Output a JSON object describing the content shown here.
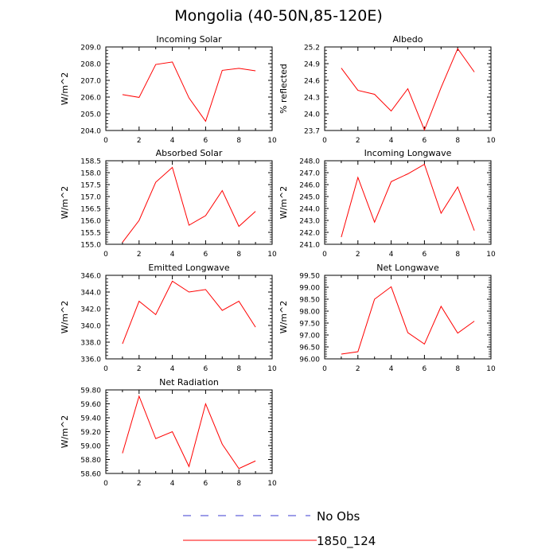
{
  "title": "Mongolia (40-50N,85-120E)",
  "colors": {
    "series": "#ff0000",
    "obs": "#3b3bd1",
    "axis": "#000000"
  },
  "legend": {
    "obs_label": "No Obs",
    "model_label": "1850_124"
  },
  "chart_data": [
    {
      "type": "line",
      "title": "Incoming Solar",
      "xlabel": "",
      "ylabel": "W/m^2",
      "xlim": [
        0,
        10
      ],
      "ylim": [
        204.0,
        209.0
      ],
      "xticks": [
        0,
        2,
        4,
        6,
        8,
        10
      ],
      "yticks": [
        204.0,
        205.0,
        206.0,
        207.0,
        208.0,
        209.0
      ],
      "ytick_labels": [
        "204.0",
        "205.0",
        "206.0",
        "207.0",
        "208.0",
        "209.0"
      ],
      "series": [
        {
          "name": "1850_124",
          "x": [
            1,
            2,
            3,
            4,
            5,
            6,
            7,
            8,
            9
          ],
          "values": [
            206.15,
            205.98,
            207.95,
            208.1,
            205.95,
            204.55,
            207.6,
            207.72,
            207.57
          ]
        }
      ]
    },
    {
      "type": "line",
      "title": "Albedo",
      "xlabel": "",
      "ylabel": "% reflected",
      "xlim": [
        0,
        10
      ],
      "ylim": [
        23.7,
        25.2
      ],
      "xticks": [
        0,
        2,
        4,
        6,
        8,
        10
      ],
      "yticks": [
        23.7,
        24.0,
        24.3,
        24.6,
        24.9,
        25.2
      ],
      "ytick_labels": [
        "23.7",
        "24.0",
        "24.3",
        "24.6",
        "24.9",
        "25.2"
      ],
      "series": [
        {
          "name": "1850_124",
          "x": [
            1,
            2,
            3,
            4,
            5,
            6,
            7,
            8,
            9
          ],
          "values": [
            24.82,
            24.42,
            24.35,
            24.05,
            24.45,
            23.71,
            24.47,
            25.17,
            24.75
          ]
        }
      ]
    },
    {
      "type": "line",
      "title": "Absorbed Solar",
      "xlabel": "",
      "ylabel": "W/m^2",
      "xlim": [
        0,
        10
      ],
      "ylim": [
        155.0,
        158.5
      ],
      "xticks": [
        0,
        2,
        4,
        6,
        8,
        10
      ],
      "yticks": [
        155.0,
        155.5,
        156.0,
        156.5,
        157.0,
        157.5,
        158.0,
        158.5
      ],
      "ytick_labels": [
        "155.0",
        "155.5",
        "156.0",
        "156.5",
        "157.0",
        "157.5",
        "158.0",
        "158.5"
      ],
      "series": [
        {
          "name": "1850_124",
          "x": [
            1,
            2,
            3,
            4,
            5,
            6,
            7,
            8,
            9
          ],
          "values": [
            155.08,
            156.0,
            157.6,
            158.22,
            155.8,
            156.2,
            157.25,
            155.75,
            156.38
          ]
        }
      ]
    },
    {
      "type": "line",
      "title": "Incoming Longwave",
      "xlabel": "",
      "ylabel": "W/m^2",
      "xlim": [
        0,
        10
      ],
      "ylim": [
        241.0,
        248.0
      ],
      "xticks": [
        0,
        2,
        4,
        6,
        8,
        10
      ],
      "yticks": [
        241.0,
        242.0,
        243.0,
        244.0,
        245.0,
        246.0,
        247.0,
        248.0
      ],
      "ytick_labels": [
        "241.0",
        "242.0",
        "243.0",
        "244.0",
        "245.0",
        "246.0",
        "247.0",
        "248.0"
      ],
      "series": [
        {
          "name": "1850_124",
          "x": [
            1,
            2,
            3,
            4,
            5,
            6,
            7,
            8,
            9
          ],
          "values": [
            241.6,
            246.6,
            242.85,
            246.25,
            246.9,
            247.7,
            243.6,
            245.8,
            242.15
          ]
        }
      ]
    },
    {
      "type": "line",
      "title": "Emitted Longwave",
      "xlabel": "",
      "ylabel": "W/m^2",
      "xlim": [
        0,
        10
      ],
      "ylim": [
        336.0,
        346.0
      ],
      "xticks": [
        0,
        2,
        4,
        6,
        8,
        10
      ],
      "yticks": [
        336.0,
        338.0,
        340.0,
        342.0,
        344.0,
        346.0
      ],
      "ytick_labels": [
        "336.0",
        "338.0",
        "340.0",
        "342.0",
        "344.0",
        "346.0"
      ],
      "series": [
        {
          "name": "1850_124",
          "x": [
            1,
            2,
            3,
            4,
            5,
            6,
            7,
            8,
            9
          ],
          "values": [
            337.8,
            342.9,
            341.3,
            345.3,
            344.0,
            344.3,
            341.8,
            342.9,
            339.8
          ]
        }
      ]
    },
    {
      "type": "line",
      "title": "Net Longwave",
      "xlabel": "",
      "ylabel": "W/m^2",
      "xlim": [
        0,
        10
      ],
      "ylim": [
        96.0,
        99.5
      ],
      "xticks": [
        0,
        2,
        4,
        6,
        8,
        10
      ],
      "yticks": [
        96.0,
        96.5,
        97.0,
        97.5,
        98.0,
        98.5,
        99.0,
        99.5
      ],
      "ytick_labels": [
        "96.00",
        "96.50",
        "97.00",
        "97.50",
        "98.00",
        "98.50",
        "99.00",
        "99.50"
      ],
      "series": [
        {
          "name": "1850_124",
          "x": [
            1,
            2,
            3,
            4,
            5,
            6,
            7,
            8,
            9
          ],
          "values": [
            96.2,
            96.3,
            98.5,
            99.02,
            97.1,
            96.62,
            98.2,
            97.08,
            97.58
          ]
        }
      ]
    },
    {
      "type": "line",
      "title": "Net Radiation",
      "xlabel": "",
      "ylabel": "W/m^2",
      "xlim": [
        0,
        10
      ],
      "ylim": [
        58.6,
        59.8
      ],
      "xticks": [
        0,
        2,
        4,
        6,
        8,
        10
      ],
      "yticks": [
        58.6,
        58.8,
        59.0,
        59.2,
        59.4,
        59.6,
        59.8
      ],
      "ytick_labels": [
        "58.60",
        "58.80",
        "59.00",
        "59.20",
        "59.40",
        "59.60",
        "59.80"
      ],
      "series": [
        {
          "name": "1850_124",
          "x": [
            1,
            2,
            3,
            4,
            5,
            6,
            7,
            8,
            9
          ],
          "values": [
            58.89,
            59.71,
            59.1,
            59.2,
            58.7,
            59.6,
            59.02,
            58.67,
            58.78
          ]
        }
      ]
    }
  ]
}
